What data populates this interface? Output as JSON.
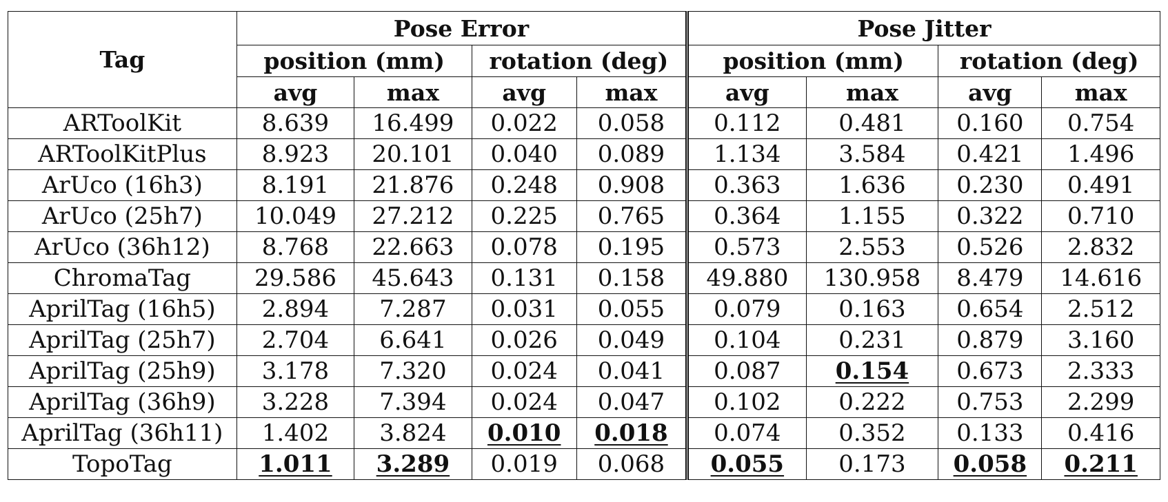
{
  "table": {
    "header": {
      "tag": "Tag",
      "groups": [
        "Pose Error",
        "Pose Jitter"
      ],
      "subgroups": [
        "position (mm)",
        "rotation (deg)",
        "position (mm)",
        "rotation (deg)"
      ],
      "stats": [
        "avg",
        "max",
        "avg",
        "max",
        "avg",
        "max",
        "avg",
        "max"
      ]
    },
    "rows": [
      {
        "tag": "ARToolKit",
        "values": [
          "8.639",
          "16.499",
          "0.022",
          "0.058",
          "0.112",
          "0.481",
          "0.160",
          "0.754"
        ]
      },
      {
        "tag": "ARToolKitPlus",
        "values": [
          "8.923",
          "20.101",
          "0.040",
          "0.089",
          "1.134",
          "3.584",
          "0.421",
          "1.496"
        ]
      },
      {
        "tag": "ArUco (16h3)",
        "values": [
          "8.191",
          "21.876",
          "0.248",
          "0.908",
          "0.363",
          "1.636",
          "0.230",
          "0.491"
        ]
      },
      {
        "tag": "ArUco (25h7)",
        "values": [
          "10.049",
          "27.212",
          "0.225",
          "0.765",
          "0.364",
          "1.155",
          "0.322",
          "0.710"
        ]
      },
      {
        "tag": "ArUco (36h12)",
        "values": [
          "8.768",
          "22.663",
          "0.078",
          "0.195",
          "0.573",
          "2.553",
          "0.526",
          "2.832"
        ]
      },
      {
        "tag": "ChromaTag",
        "values": [
          "29.586",
          "45.643",
          "0.131",
          "0.158",
          "49.880",
          "130.958",
          "8.479",
          "14.616"
        ]
      },
      {
        "tag": "AprilTag (16h5)",
        "values": [
          "2.894",
          "7.287",
          "0.031",
          "0.055",
          "0.079",
          "0.163",
          "0.654",
          "2.512"
        ]
      },
      {
        "tag": "AprilTag (25h7)",
        "values": [
          "2.704",
          "6.641",
          "0.026",
          "0.049",
          "0.104",
          "0.231",
          "0.879",
          "3.160"
        ]
      },
      {
        "tag": "AprilTag (25h9)",
        "values": [
          "3.178",
          "7.320",
          "0.024",
          "0.041",
          "0.087",
          "0.154",
          "0.673",
          "2.333"
        ]
      },
      {
        "tag": "AprilTag (36h9)",
        "values": [
          "3.228",
          "7.394",
          "0.024",
          "0.047",
          "0.102",
          "0.222",
          "0.753",
          "2.299"
        ]
      },
      {
        "tag": "AprilTag (36h11)",
        "values": [
          "1.402",
          "3.824",
          "0.010",
          "0.018",
          "0.074",
          "0.352",
          "0.133",
          "0.416"
        ]
      },
      {
        "tag": "TopoTag",
        "values": [
          "1.011",
          "3.289",
          "0.019",
          "0.068",
          "0.055",
          "0.173",
          "0.058",
          "0.211"
        ]
      }
    ]
  }
}
